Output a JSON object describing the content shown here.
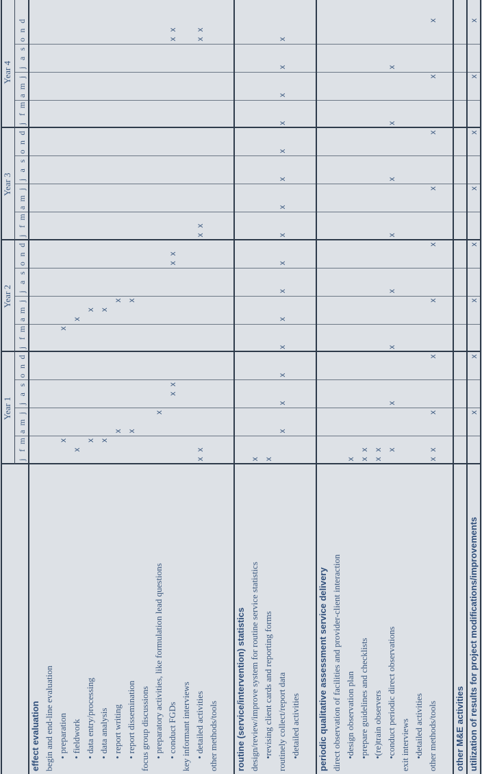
{
  "years": [
    "Year 1",
    "Year 2",
    "Year 3",
    "Year 4"
  ],
  "month_letters": [
    "j",
    "f",
    "m",
    "a",
    "m",
    "j",
    "j",
    "a",
    "s",
    "o",
    "n",
    "d"
  ],
  "x_symbol": "x",
  "rows": [
    {
      "label": "effect evaluation",
      "style": "header",
      "x": []
    },
    {
      "label": "begin and end-line evaluation",
      "style": "plain",
      "x": []
    },
    {
      "label": "• preparation",
      "style": "indent",
      "x": [
        2,
        14
      ]
    },
    {
      "label": "• fieldwork",
      "style": "indent",
      "x": [
        1,
        15
      ]
    },
    {
      "label": "• data entry/processing",
      "style": "indent",
      "x": [
        2,
        16
      ]
    },
    {
      "label": "• data analysis",
      "style": "indent",
      "x": [
        2,
        16
      ]
    },
    {
      "label": "• report writing",
      "style": "indent",
      "x": [
        3,
        17
      ]
    },
    {
      "label": "• report dissemination",
      "style": "indent",
      "x": [
        3,
        17
      ]
    },
    {
      "label": "focus group discussions",
      "style": "plain",
      "x": []
    },
    {
      "label": "• preparatory activities, like formulation lead questions",
      "style": "indent",
      "x": [
        5
      ]
    },
    {
      "label": "• conduct FGDs",
      "style": "indent",
      "x": [
        7,
        8,
        21,
        22,
        45,
        46
      ]
    },
    {
      "label": "key informant interviews",
      "style": "plain",
      "x": []
    },
    {
      "label": "• detailed activities",
      "style": "indent",
      "x": [
        0,
        1,
        24,
        25,
        45,
        46
      ]
    },
    {
      "label": "other methods/tools",
      "style": "plain",
      "x": []
    },
    {
      "label": "",
      "style": "blank",
      "x": []
    },
    {
      "label": "routine (service/intervention) statistics",
      "style": "header",
      "x": []
    },
    {
      "label": "design/review/improve system for routine service statistics",
      "style": "plain",
      "x": [
        0
      ]
    },
    {
      "label": "•revising client cards and reporting forms",
      "style": "indent",
      "x": [
        0
      ]
    },
    {
      "label": "routinely collect/report data",
      "style": "plain",
      "x": [
        3,
        6,
        9,
        12,
        15,
        18,
        21,
        24,
        27,
        30,
        33,
        36,
        39,
        42,
        45
      ]
    },
    {
      "label": "•detailed activities",
      "style": "indent",
      "x": []
    },
    {
      "label": "",
      "style": "blank",
      "x": []
    },
    {
      "label": "periodic qualitative assessment service delivery",
      "style": "header",
      "x": []
    },
    {
      "label": "direct observation of facilities and provider-client interaction",
      "style": "plain",
      "x": []
    },
    {
      "label": "•design observation plan",
      "style": "indent",
      "x": [
        0
      ]
    },
    {
      "label": "•prepare guidelines and checklists",
      "style": "indent",
      "x": [
        0,
        1
      ]
    },
    {
      "label": "•(re)train observers",
      "style": "indent",
      "x": [
        0,
        1
      ]
    },
    {
      "label": "•conduct periodic direct observations",
      "style": "indent",
      "x": [
        1,
        6,
        12,
        18,
        24,
        30,
        36,
        42
      ]
    },
    {
      "label": "exit interviews",
      "style": "plain",
      "x": []
    },
    {
      "label": "•detailed activities",
      "style": "indent",
      "x": []
    },
    {
      "label": "other methods/tools",
      "style": "plain",
      "x": [
        0,
        1,
        5,
        11,
        17,
        23,
        29,
        35,
        41,
        47
      ]
    },
    {
      "label": "",
      "style": "blank",
      "x": []
    },
    {
      "label": "other M&E activities",
      "style": "header",
      "x": []
    },
    {
      "label": "utilization of results for project modifications/improvements",
      "style": "header",
      "x": [
        5,
        11,
        17,
        23,
        29,
        35,
        41,
        47
      ]
    }
  ]
}
